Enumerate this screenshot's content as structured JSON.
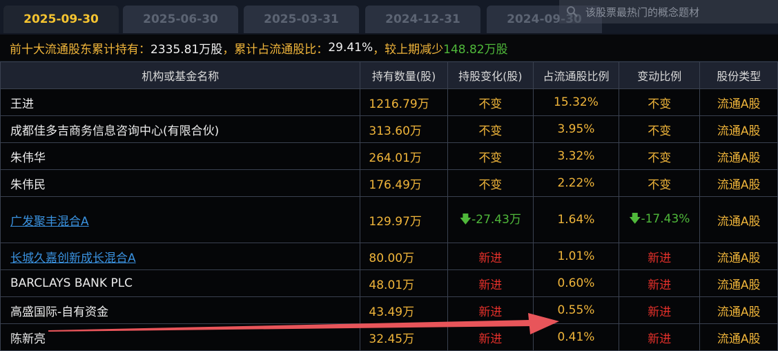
{
  "tabs": [
    "2025-09-30",
    "2025-06-30",
    "2025-03-31",
    "2024-12-31",
    "2024-09-30"
  ],
  "active_tab": "2025-09-30",
  "search": {
    "placeholder": "该股票最热门的概念题材",
    "icon": "search-icon"
  },
  "summary": {
    "label1": "前十大流通股东累计持有：",
    "value1": "2335.81万股",
    "label2": "，累计占流通股比：",
    "value2": "29.41%",
    "label3": " ，较上期减少",
    "value3": "148.82万股"
  },
  "headers": [
    "机构或基金名称",
    "持有数量(股)",
    "持股变化(股)",
    "占流通股比例",
    "变动比例",
    "股份类型"
  ],
  "rows": [
    {
      "name": "王进",
      "qty": "1216.79万",
      "chg": "不变",
      "pct": "15.32%",
      "ratio": "不变",
      "type": "流通A股"
    },
    {
      "name": "成都佳多吉商务信息咨询中心(有限合伙)",
      "qty": "313.60万",
      "chg": "不变",
      "pct": "3.95%",
      "ratio": "不变",
      "type": "流通A股"
    },
    {
      "name": "朱伟华",
      "qty": "264.01万",
      "chg": "不变",
      "pct": "3.32%",
      "ratio": "不变",
      "type": "流通A股"
    },
    {
      "name": "朱伟民",
      "qty": "176.49万",
      "chg": "不变",
      "pct": "2.22%",
      "ratio": "不变",
      "type": "流通A股"
    },
    {
      "name": "广发聚丰混合A",
      "qty": "129.97万",
      "chg": "-27.43万",
      "pct": "1.64%",
      "ratio": "-17.43%",
      "type": "流通A股"
    },
    {
      "name": "长城久嘉创新成长混合A",
      "qty": "80.00万",
      "chg": "新进",
      "pct": "1.01%",
      "ratio": "新进",
      "type": "流通A股"
    },
    {
      "name": "BARCLAYS BANK PLC",
      "qty": "48.01万",
      "chg": "新进",
      "pct": "0.60%",
      "ratio": "新进",
      "type": "流通A股"
    },
    {
      "name": "高盛国际-自有资金",
      "qty": "43.49万",
      "chg": "新进",
      "pct": "0.55%",
      "ratio": "新进",
      "type": "流通A股"
    },
    {
      "name": "陈新亮",
      "qty": "32.45万",
      "chg": "新进",
      "pct": "0.41%",
      "ratio": "新进",
      "type": "流通A股"
    }
  ],
  "colors": {
    "accent": "#f0b53a",
    "increase_new": "#e5302a",
    "decrease": "#4fb83a",
    "link": "#3a92e0",
    "annotation_arrow": "#e8555a"
  }
}
